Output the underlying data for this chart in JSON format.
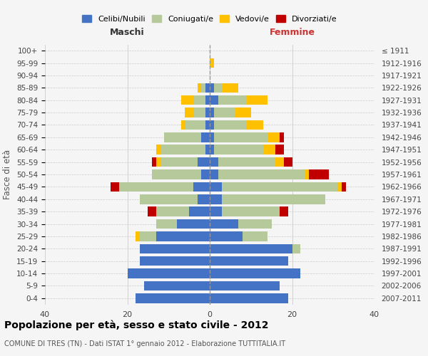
{
  "age_groups": [
    "0-4",
    "5-9",
    "10-14",
    "15-19",
    "20-24",
    "25-29",
    "30-34",
    "35-39",
    "40-44",
    "45-49",
    "50-54",
    "55-59",
    "60-64",
    "65-69",
    "70-74",
    "75-79",
    "80-84",
    "85-89",
    "90-94",
    "95-99",
    "100+"
  ],
  "birth_years": [
    "2007-2011",
    "2002-2006",
    "1997-2001",
    "1992-1996",
    "1987-1991",
    "1982-1986",
    "1977-1981",
    "1972-1976",
    "1967-1971",
    "1962-1966",
    "1957-1961",
    "1952-1956",
    "1947-1951",
    "1942-1946",
    "1937-1941",
    "1932-1936",
    "1927-1931",
    "1922-1926",
    "1917-1921",
    "1912-1916",
    "≤ 1911"
  ],
  "colors": {
    "celibi": "#4472c4",
    "coniugati": "#b5c99a",
    "vedovi": "#ffc000",
    "divorziati": "#c00000"
  },
  "maschi": {
    "celibi": [
      18,
      16,
      20,
      17,
      17,
      13,
      8,
      5,
      3,
      4,
      2,
      3,
      1,
      2,
      1,
      1,
      1,
      1,
      0,
      0,
      0
    ],
    "coniugati": [
      0,
      0,
      0,
      0,
      0,
      4,
      5,
      8,
      14,
      18,
      12,
      9,
      11,
      9,
      5,
      3,
      3,
      1,
      0,
      0,
      0
    ],
    "vedovi": [
      0,
      0,
      0,
      0,
      0,
      1,
      0,
      0,
      0,
      0,
      0,
      1,
      1,
      0,
      1,
      2,
      3,
      1,
      0,
      0,
      0
    ],
    "divorziati": [
      0,
      0,
      0,
      0,
      0,
      0,
      0,
      2,
      0,
      2,
      0,
      1,
      0,
      0,
      0,
      0,
      0,
      0,
      0,
      0,
      0
    ]
  },
  "femmine": {
    "celibi": [
      19,
      17,
      22,
      19,
      20,
      8,
      7,
      3,
      3,
      3,
      2,
      2,
      1,
      1,
      1,
      1,
      2,
      1,
      0,
      0,
      0
    ],
    "coniugati": [
      0,
      0,
      0,
      0,
      2,
      6,
      8,
      14,
      25,
      28,
      21,
      14,
      12,
      13,
      8,
      5,
      7,
      2,
      0,
      0,
      0
    ],
    "vedovi": [
      0,
      0,
      0,
      0,
      0,
      0,
      0,
      0,
      0,
      1,
      1,
      2,
      3,
      3,
      4,
      4,
      5,
      4,
      0,
      1,
      0
    ],
    "divorziati": [
      0,
      0,
      0,
      0,
      0,
      0,
      0,
      2,
      0,
      1,
      5,
      2,
      2,
      1,
      0,
      0,
      0,
      0,
      0,
      0,
      0
    ]
  },
  "xlim": 40,
  "title": "Popolazione per età, sesso e stato civile - 2012",
  "subtitle": "COMUNE DI TRES (TN) - Dati ISTAT 1° gennaio 2012 - Elaborazione TUTTITALIA.IT",
  "xlabel_left": "Maschi",
  "xlabel_right": "Femmine",
  "ylabel_left": "Fasce di età",
  "legend_labels": [
    "Celibi/Nubili",
    "Coniugati/e",
    "Vedovi/e",
    "Divorziati/e"
  ],
  "bg_color": "#f5f5f5"
}
